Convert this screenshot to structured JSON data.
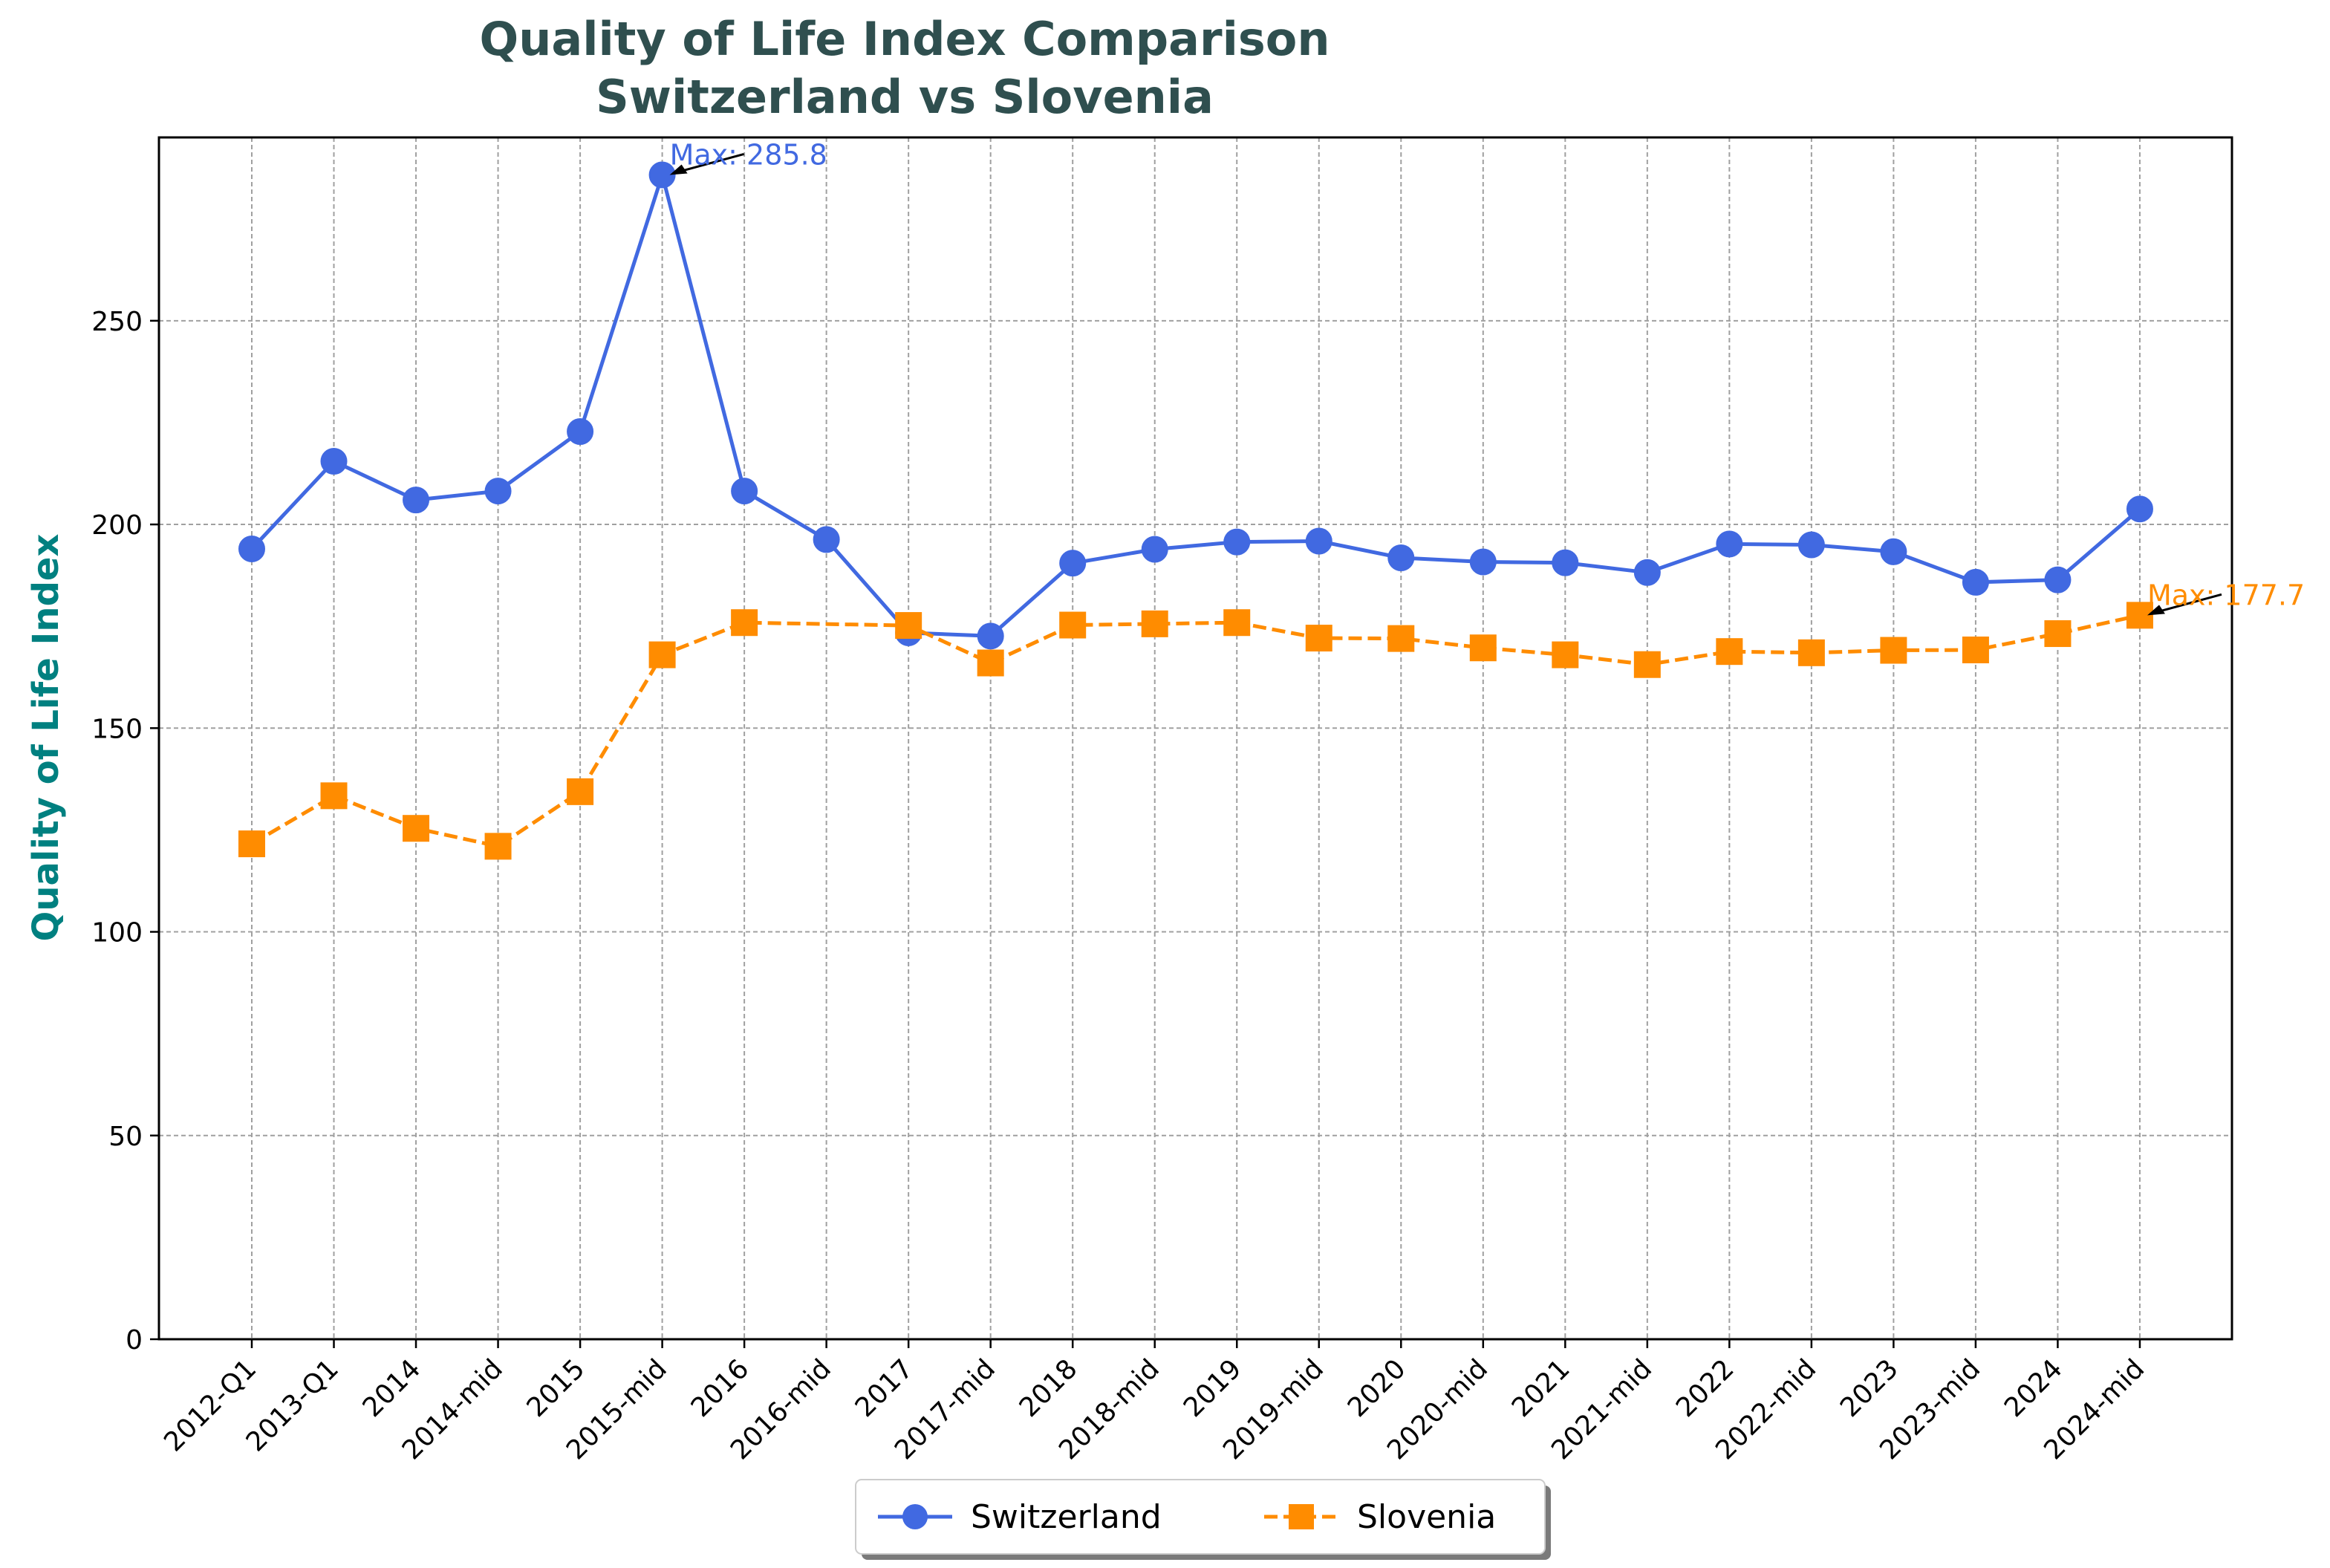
{
  "chart_data": {
    "type": "line",
    "title_line1": "Quality of Life Index Comparison",
    "title_line2": "Switzerland vs Slovenia",
    "xlabel": "",
    "ylabel": "Quality of Life Index",
    "categories": [
      "2012-Q1",
      "2013-Q1",
      "2014",
      "2014-mid",
      "2015",
      "2015-mid",
      "2016",
      "2016-mid",
      "2017",
      "2017-mid",
      "2018",
      "2018-mid",
      "2019",
      "2019-mid",
      "2020",
      "2020-mid",
      "2021",
      "2021-mid",
      "2022",
      "2022-mid",
      "2023",
      "2023-mid",
      "2024",
      "2024-mid"
    ],
    "ylim": [
      0,
      295
    ],
    "yticks": [
      0,
      50,
      100,
      150,
      200,
      250
    ],
    "grid": true,
    "legend_position": "bottom-center",
    "series": [
      {
        "name": "Switzerland",
        "color": "#4169E1",
        "marker": "circle",
        "line_style": "solid",
        "values": [
          194.0,
          215.5,
          206.0,
          208.2,
          222.8,
          285.8,
          208.2,
          196.3,
          173.4,
          172.6,
          190.5,
          193.9,
          195.7,
          195.9,
          191.8,
          190.8,
          190.6,
          188.2,
          195.2,
          195.0,
          193.3,
          185.8,
          186.4,
          203.8
        ]
      },
      {
        "name": "Slovenia",
        "color": "#FF8C00",
        "marker": "square",
        "line_style": "dashed",
        "values": [
          121.6,
          133.4,
          125.4,
          121.0,
          134.4,
          168.0,
          175.9,
          null,
          175.2,
          166.0,
          175.3,
          175.6,
          175.9,
          172.1,
          172.0,
          169.7,
          168.0,
          165.6,
          168.8,
          168.5,
          169.1,
          169.2,
          173.2,
          177.7
        ]
      }
    ],
    "annotations": [
      {
        "series": 0,
        "index": 5,
        "text": "Max: 285.8",
        "color": "#4169E1"
      },
      {
        "series": 1,
        "index": 23,
        "text": "Max: 177.7",
        "color": "#FF8C00"
      }
    ]
  }
}
